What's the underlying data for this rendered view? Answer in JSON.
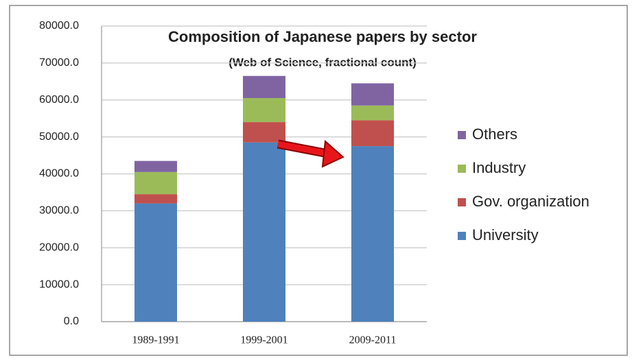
{
  "chart_data": {
    "type": "stacked-bar",
    "title": "Composition of Japanese papers by sector",
    "subtitle": "(Web of Science, fractional count)",
    "categories": [
      "1989-1991",
      "1999-2001",
      "2009-2011"
    ],
    "series": [
      {
        "name": "University",
        "color": "#4f81bd",
        "values": [
          32000,
          48500,
          47500
        ]
      },
      {
        "name": "Gov. organization",
        "color": "#c0504d",
        "values": [
          2500,
          5500,
          7000
        ]
      },
      {
        "name": "Industry",
        "color": "#9bbb59",
        "values": [
          6000,
          6500,
          4000
        ]
      },
      {
        "name": "Others",
        "color": "#8064a2",
        "values": [
          3000,
          6000,
          6000
        ]
      }
    ],
    "ylim": [
      0,
      80000
    ],
    "yticks": [
      {
        "value": 0,
        "label": "0.0"
      },
      {
        "value": 10000,
        "label": "10000.0"
      },
      {
        "value": 20000,
        "label": "20000.0"
      },
      {
        "value": 30000,
        "label": "30000.0"
      },
      {
        "value": 40000,
        "label": "40000.0"
      },
      {
        "value": 50000,
        "label": "50000.0"
      },
      {
        "value": 60000,
        "label": "60000.0"
      },
      {
        "value": 70000,
        "label": "70000.0"
      },
      {
        "value": 80000,
        "label": "80000.0"
      }
    ],
    "grid": true,
    "legend": "right"
  }
}
